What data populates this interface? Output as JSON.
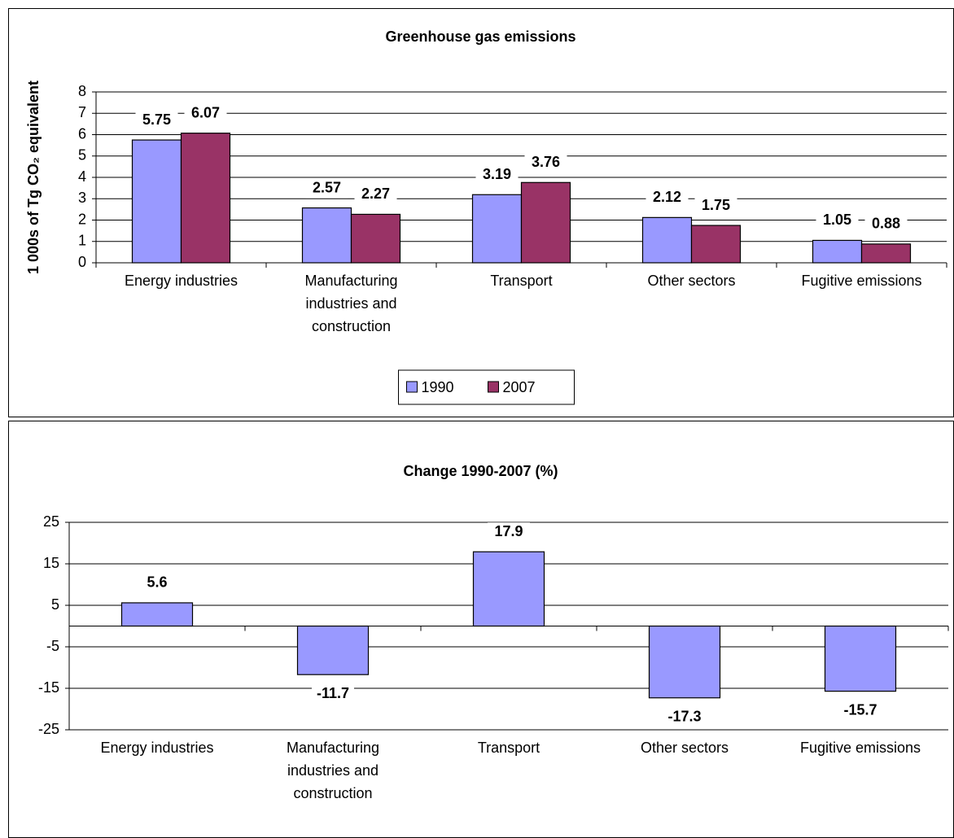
{
  "chart_data": [
    {
      "type": "bar",
      "title": "Greenhouse gas emissions",
      "y_label": "1 000s of Tg CO₂ equivalent",
      "categories": [
        "Energy industries",
        "Manufacturing industries and construction",
        "Transport",
        "Other sectors",
        "Fugitive emissions"
      ],
      "series": [
        {
          "name": "1990",
          "color": "#9999ff",
          "values": [
            5.75,
            2.57,
            3.19,
            2.12,
            1.05
          ]
        },
        {
          "name": "2007",
          "color": "#993366",
          "values": [
            6.07,
            2.27,
            3.76,
            1.75,
            0.88
          ]
        }
      ],
      "ylim": [
        0,
        8
      ],
      "yticks": [
        0,
        1,
        2,
        3,
        4,
        5,
        6,
        7,
        8
      ],
      "grid": true,
      "legend": "bottom"
    },
    {
      "type": "bar",
      "title": "Change 1990-2007 (%)",
      "categories": [
        "Energy industries",
        "Manufacturing industries and construction",
        "Transport",
        "Other sectors",
        "Fugitive emissions"
      ],
      "series": [
        {
          "name": "Change",
          "color": "#9999ff",
          "values": [
            5.6,
            -11.7,
            17.9,
            -17.3,
            -15.7
          ]
        }
      ],
      "ylim": [
        -25,
        25
      ],
      "yticks": [
        -25,
        -15,
        -5,
        5,
        15,
        25
      ],
      "grid": true
    }
  ]
}
